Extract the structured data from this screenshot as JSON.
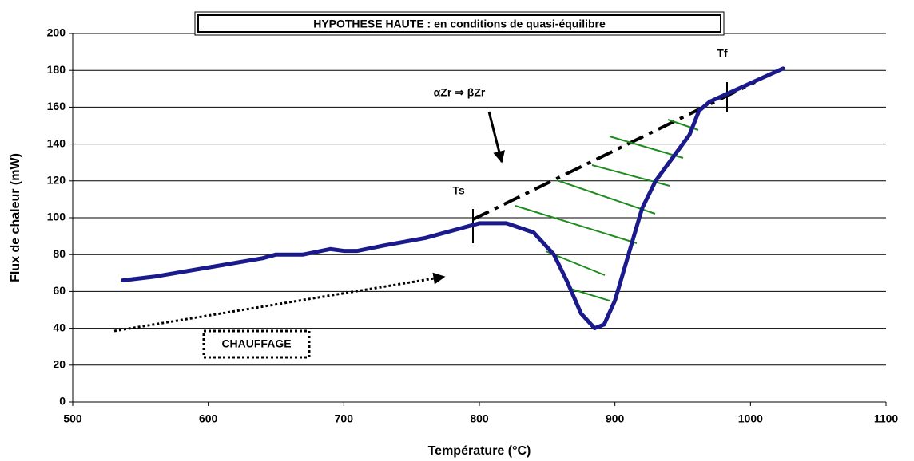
{
  "chart_data": {
    "type": "line",
    "title": "HYPOTHESE  HAUTE : en conditions de quasi-équilibre",
    "x_label": "Température (°C)",
    "y_label": "Flux de chaleur (mW)",
    "annotations": [
      "Ts",
      "Tf",
      "αZr ⇒ βZr",
      "CHAUFFAGE"
    ],
    "x": [
      537,
      560,
      600,
      640,
      650,
      670,
      690,
      700,
      710,
      730,
      760,
      780,
      800,
      820,
      840,
      855,
      865,
      875,
      885,
      892,
      900,
      910,
      920,
      930,
      945,
      955,
      962,
      970,
      985,
      1000,
      1024
    ],
    "values": [
      66,
      68,
      73,
      78,
      80,
      80,
      83,
      82,
      82,
      85,
      89,
      93,
      97,
      97,
      92,
      80,
      65,
      48,
      40,
      42,
      55,
      80,
      105,
      120,
      135,
      145,
      158,
      163,
      168,
      173,
      181
    ],
    "color": "#1a1a8c",
    "xlim": [
      500,
      1100
    ],
    "xticks": [
      500,
      600,
      700,
      800,
      900,
      1000,
      1100
    ],
    "ylim": [
      0,
      200
    ],
    "yticks": [
      0,
      20,
      40,
      60,
      80,
      100,
      120,
      140,
      160,
      180,
      200
    ],
    "grid": true
  }
}
